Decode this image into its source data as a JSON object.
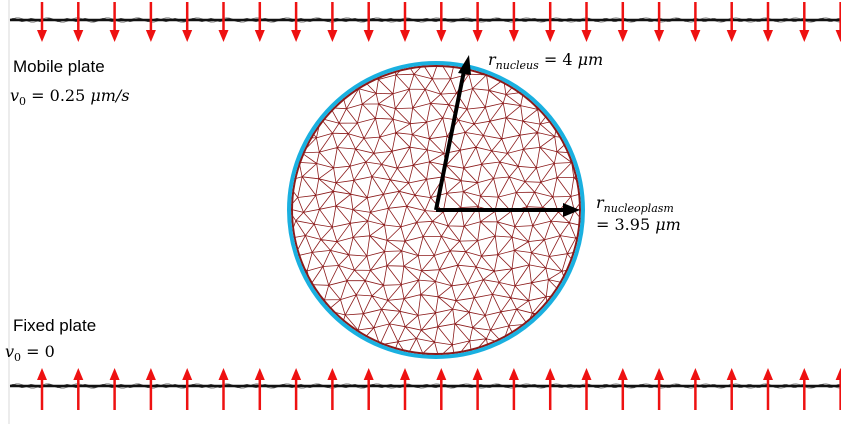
{
  "plates": {
    "mobile": {
      "name": "Mobile plate",
      "velocity_symbol": "v",
      "velocity_sub": "0",
      "velocity_value": "= 0.25",
      "velocity_unit": "μm/s"
    },
    "fixed": {
      "name": "Fixed plate",
      "velocity_symbol": "v",
      "velocity_sub": "0",
      "velocity_value": "= 0"
    }
  },
  "nucleus": {
    "symbol": "r",
    "sub": "nucleus",
    "value": "= 4",
    "unit": "μm"
  },
  "nucleoplasm": {
    "symbol": "r",
    "sub": "nucleoplasm",
    "value": "= 3.95",
    "unit": "μm"
  },
  "colors": {
    "arrow": "#ee1111",
    "mesh": "#8b1a1a",
    "membrane": "#1ab0e0",
    "radius": "#000000",
    "plate": "#111111"
  },
  "arrow_count": 23
}
